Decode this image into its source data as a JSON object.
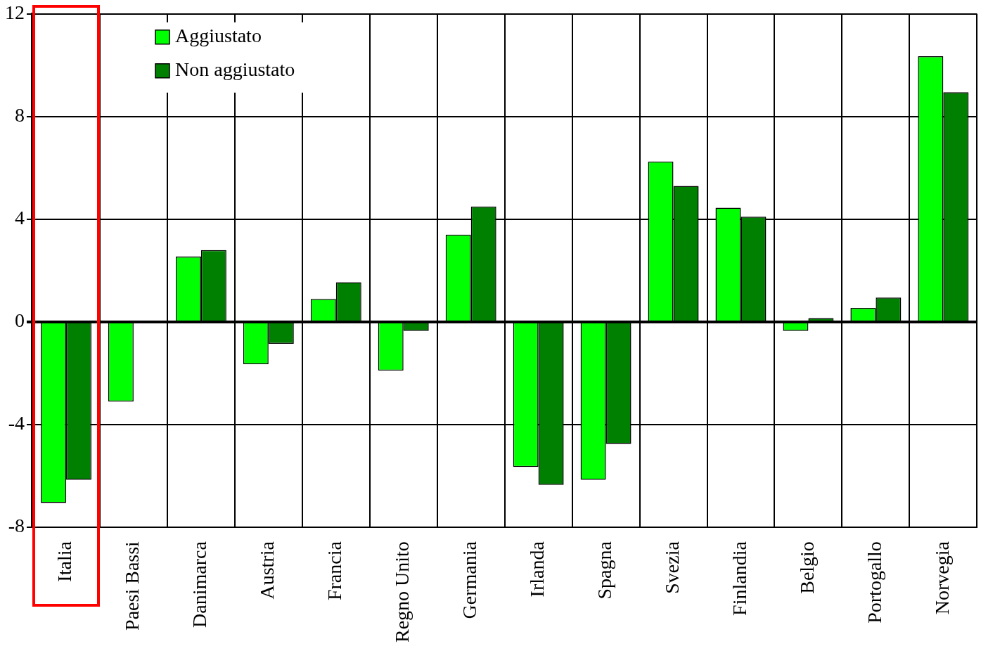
{
  "chart_data": {
    "type": "bar",
    "categories": [
      "Italia",
      "Paesi Bassi",
      "Danimarca",
      "Austria",
      "Francia",
      "Regno Unito",
      "Germania",
      "Irlanda",
      "Spagna",
      "Svezia",
      "Finlandia",
      "Belgio",
      "Portogallo",
      "Norvegia"
    ],
    "series": [
      {
        "name": "Aggiustato",
        "color": "#00ff00",
        "values": [
          -7.05,
          -3.1,
          2.55,
          -1.65,
          0.9,
          -1.9,
          3.4,
          -5.65,
          -6.15,
          6.25,
          4.45,
          -0.35,
          0.55,
          10.35
        ]
      },
      {
        "name": "Non aggiustato",
        "color": "#008000",
        "values": [
          -6.15,
          null,
          2.8,
          -0.85,
          1.55,
          -0.35,
          4.5,
          -6.35,
          -4.75,
          5.3,
          4.1,
          0.15,
          0.95,
          8.95
        ]
      }
    ],
    "ylim": [
      -8,
      12
    ],
    "yticks": [
      -8,
      -4,
      0,
      4,
      8,
      12
    ],
    "grid": true,
    "legend": "top left"
  }
}
